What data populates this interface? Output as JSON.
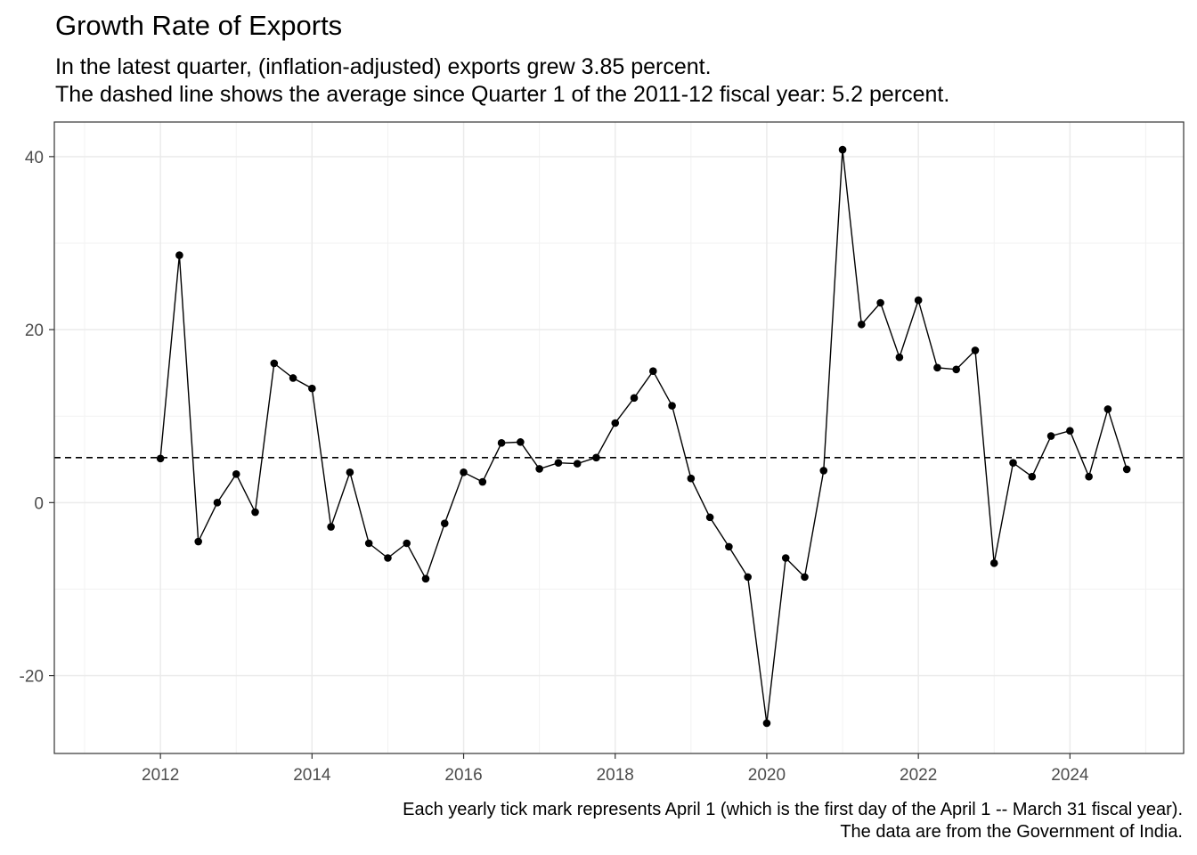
{
  "chart_data": {
    "type": "line",
    "title": "Growth Rate of Exports",
    "subtitle_lines": [
      "In the latest quarter, (inflation-adjusted) exports grew 3.85 percent.",
      "The dashed line shows the average since Quarter 1 of the 2011-12 fiscal year: 5.2 percent."
    ],
    "caption_lines": [
      "Each yearly tick mark represents April 1 (which is the first day of the April 1 -- March 31 fiscal year).",
      "The data are from the Government of India."
    ],
    "xlabel": "",
    "ylabel": "",
    "x_ticks": [
      "2012",
      "2014",
      "2016",
      "2018",
      "2020",
      "2022",
      "2024"
    ],
    "y_ticks": [
      "-20",
      "0",
      "20",
      "40"
    ],
    "xlim": [
      2010.6,
      2025.5
    ],
    "ylim": [
      -29,
      44
    ],
    "grid": true,
    "average_line": 5.2,
    "series": [
      {
        "x": [
          2012.0,
          2012.25,
          2012.5,
          2012.75,
          2013.0,
          2013.25,
          2013.5,
          2013.75,
          2014.0,
          2014.25,
          2014.5,
          2014.75,
          2015.0,
          2015.25,
          2015.5,
          2015.75,
          2016.0,
          2016.25,
          2016.5,
          2016.75,
          2017.0,
          2017.25,
          2017.5,
          2017.75,
          2018.0,
          2018.25,
          2018.5,
          2018.75,
          2019.0,
          2019.25,
          2019.5,
          2019.75,
          2020.0,
          2020.25,
          2020.5,
          2020.75,
          2021.0,
          2021.25,
          2021.5,
          2021.75,
          2022.0,
          2022.25,
          2022.5,
          2022.75,
          2023.0,
          2023.25,
          2023.5,
          2023.75,
          2024.0,
          2024.25,
          2024.5,
          2024.75
        ],
        "values": [
          5.1,
          28.6,
          -4.5,
          0.0,
          3.3,
          -1.1,
          16.1,
          14.4,
          13.2,
          -2.8,
          3.5,
          -4.7,
          -6.4,
          -4.7,
          -8.8,
          -2.4,
          3.5,
          2.4,
          6.9,
          7.0,
          3.9,
          4.6,
          4.5,
          5.2,
          9.2,
          12.1,
          15.2,
          11.2,
          2.8,
          -1.7,
          -5.1,
          -8.6,
          -25.5,
          -6.4,
          -8.6,
          3.7,
          40.8,
          20.6,
          23.1,
          16.8,
          23.4,
          15.6,
          15.4,
          17.6,
          -7.0,
          4.6,
          3.0,
          7.7,
          8.3,
          3.0,
          10.8,
          3.85
        ]
      }
    ]
  }
}
